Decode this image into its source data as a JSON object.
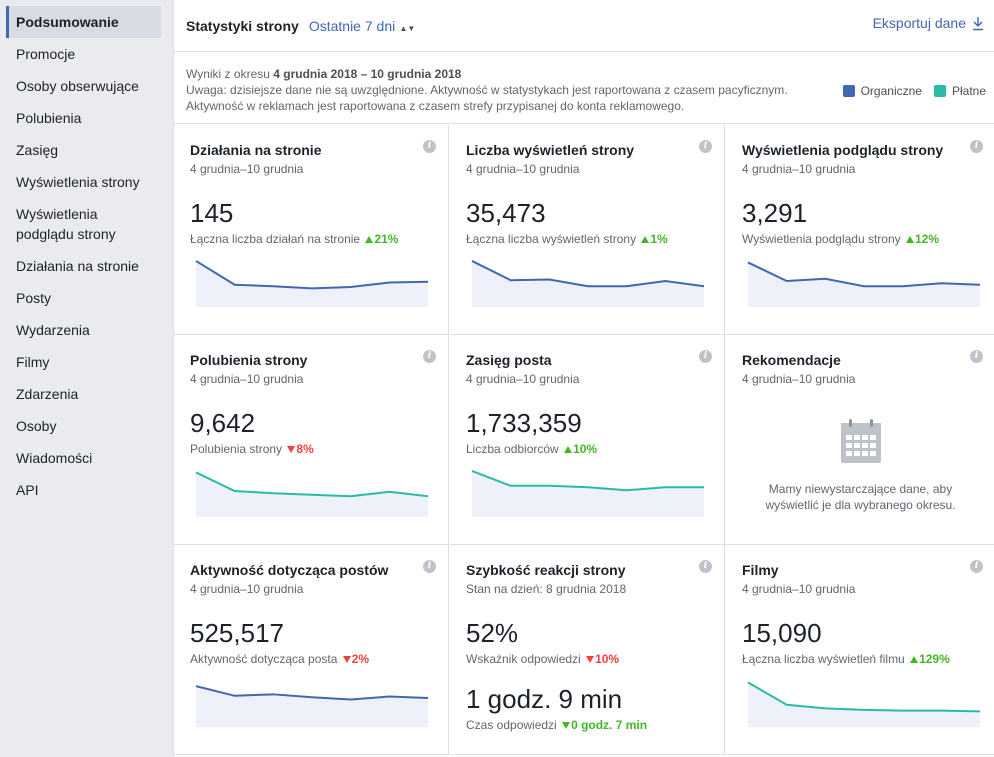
{
  "sidebar": {
    "items": [
      {
        "label": "Podsumowanie",
        "active": true
      },
      {
        "label": "Promocje"
      },
      {
        "label": "Osoby obserwujące"
      },
      {
        "label": "Polubienia"
      },
      {
        "label": "Zasięg"
      },
      {
        "label": "Wyświetlenia strony"
      },
      {
        "label": "Wyświetlenia podglądu strony"
      },
      {
        "label": "Działania na stronie"
      },
      {
        "label": "Posty"
      },
      {
        "label": "Wydarzenia"
      },
      {
        "label": "Filmy"
      },
      {
        "label": "Zdarzenia"
      },
      {
        "label": "Osoby"
      },
      {
        "label": "Wiadomości"
      },
      {
        "label": "API"
      }
    ]
  },
  "header": {
    "title": "Statystyki strony",
    "period": "Ostatnie 7 dni",
    "export": "Eksportuj dane"
  },
  "info": {
    "range_prefix": "Wyniki z okresu ",
    "range": "4 grudnia 2018 – 10 grudnia 2018",
    "note1": "Uwaga: dzisiejsze dane nie są uwzględnione. Aktywność w statystykach jest raportowana z czasem pacyficznym.",
    "note2": "Aktywność w reklamach jest raportowana z czasem strefy przypisanej do konta reklamowego."
  },
  "legend": {
    "organic": "Organiczne",
    "paid": "Płatne",
    "organic_color": "#4267b2",
    "paid_color": "#2abba7"
  },
  "cards": {
    "c1": {
      "title": "Działania na stronie",
      "date": "4 grudnia–10 grudnia",
      "value": "145",
      "sub": "Łączna liczba działań na stronie",
      "change": "21%",
      "series": [
        62,
        30,
        28,
        25,
        27,
        33,
        34
      ]
    },
    "c2": {
      "title": "Liczba wyświetleń strony",
      "date": "4 grudnia–10 grudnia",
      "value": "35,473",
      "sub": "Łączna liczba wyświetleń strony",
      "change": "1%",
      "series": [
        62,
        36,
        37,
        28,
        28,
        35,
        28
      ]
    },
    "c3": {
      "title": "Wyświetlenia podglądu strony",
      "date": "4 grudnia–10 grudnia",
      "value": "3,291",
      "sub": "Wyświetlenia podglądu strony",
      "change": "12%",
      "series": [
        60,
        35,
        38,
        28,
        28,
        32,
        30
      ]
    },
    "c4": {
      "title": "Polubienia strony",
      "date": "4 grudnia–10 grudnia",
      "value": "9,642",
      "sub": "Polubienia strony",
      "change": "8%",
      "series": [
        60,
        35,
        32,
        30,
        28,
        34,
        28
      ]
    },
    "c5": {
      "title": "Zasięg posta",
      "date": "4 grudnia–10 grudnia",
      "value": "1,733,359",
      "sub": "Liczba odbiorców",
      "change": "10%",
      "series": [
        62,
        42,
        42,
        40,
        36,
        40,
        40
      ]
    },
    "c6": {
      "title": "Rekomendacje",
      "date": "4 grudnia–10 grudnia",
      "text": "Mamy niewystarczające dane, aby wyświetlić je dla wybranego okresu."
    },
    "c7": {
      "title": "Aktywność dotycząca postów",
      "date": "4 grudnia–10 grudnia",
      "value": "525,517",
      "sub": "Aktywność dotycząca posta",
      "change": "2%",
      "series": [
        55,
        42,
        44,
        40,
        37,
        41,
        39
      ]
    },
    "c8": {
      "title": "Szybkość reakcji strony",
      "date": "Stan na dzień: 8 grudnia 2018",
      "value": "52%",
      "sub": "Wskaźnik odpowiedzi",
      "change": "10%",
      "value2": "1 godz. 9 min",
      "sub2": "Czas odpowiedzi",
      "change2": "0 godz. 7 min"
    },
    "c9": {
      "title": "Filmy",
      "date": "4 grudnia–10 grudnia",
      "value": "15,090",
      "sub": "Łączna liczba wyświetleń filmu",
      "change": "129%",
      "series": [
        60,
        30,
        25,
        23,
        22,
        22,
        21
      ]
    }
  }
}
